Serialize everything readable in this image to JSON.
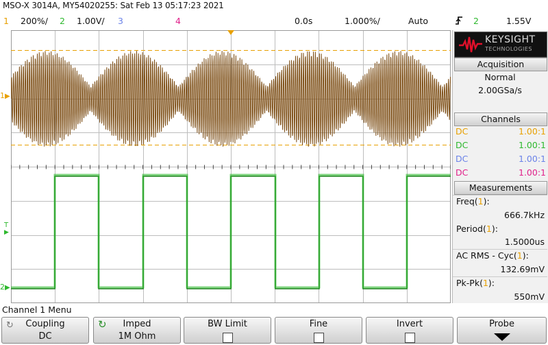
{
  "title": "MSO-X 3014A, MY54020255: Sat Feb 13 05:17:23 2021",
  "status": {
    "ch1_num": "1",
    "ch1_scale": "200%/",
    "ch2_num": "2",
    "ch2_scale": "1.00V/",
    "ch3_num": "3",
    "ch4_num": "4",
    "delay": "0.0s",
    "timebase": "1.000%/",
    "trigger_mode": "Auto",
    "trigger_icon": "rising-edge-icon",
    "trigger_source": "2",
    "trigger_level": "1.55V"
  },
  "markers": {
    "ch1": "1",
    "trigger": "T",
    "ch2": "2"
  },
  "colors": {
    "ch1": "#e8a000",
    "ch2": "#2db82d",
    "ch3": "#6a82e8",
    "ch4": "#e0208a",
    "ch1_trace": "#7a4a10",
    "ch2_trace": "#1f7f1f"
  },
  "logo": {
    "brand": "KEYSIGHT",
    "sub": "TECHNOLOGIES"
  },
  "acquisition": {
    "header": "Acquisition",
    "mode": "Normal",
    "rate": "2.00GSa/s"
  },
  "channels": {
    "header": "Channels",
    "rows": [
      {
        "coupling": "DC",
        "ratio": "1.00:1"
      },
      {
        "coupling": "DC",
        "ratio": "1.00:1"
      },
      {
        "coupling": "DC",
        "ratio": "1.00:1"
      },
      {
        "coupling": "DC",
        "ratio": "1.00:1"
      }
    ]
  },
  "measurements": {
    "header": "Measurements",
    "items": [
      {
        "label": "Freq",
        "channel": "1",
        "value": "666.7kHz"
      },
      {
        "label": "Period",
        "channel": "1",
        "value": "1.5000us"
      },
      {
        "label": "AC RMS - Cyc",
        "channel": "1",
        "value": "132.69mV"
      },
      {
        "label": "Pk-Pk",
        "channel": "1",
        "value": "550mV"
      }
    ]
  },
  "menu": {
    "title": "Channel 1 Menu",
    "softkeys": [
      {
        "label": "Coupling",
        "value": "DC"
      },
      {
        "label": "Imped",
        "value": "1M Ohm"
      },
      {
        "label": "BW Limit"
      },
      {
        "label": "Fine"
      },
      {
        "label": "Invert"
      },
      {
        "label": "Probe"
      }
    ]
  }
}
